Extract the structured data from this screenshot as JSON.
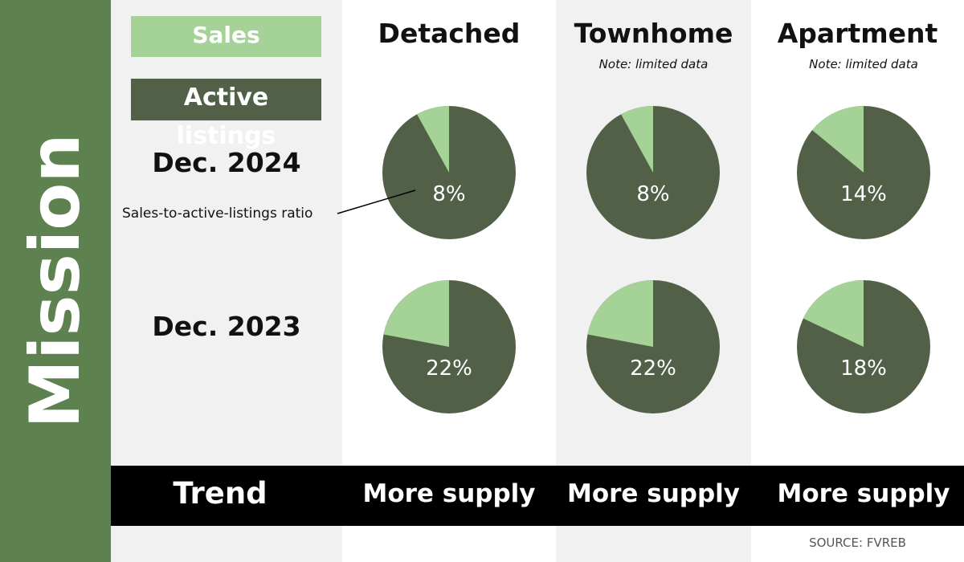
{
  "sidebar": {
    "title": "Mission"
  },
  "legend": {
    "sales_label": "Sales",
    "active_label": "Active listings"
  },
  "rows": {
    "dec2024": "Dec. 2024",
    "dec2023": "Dec. 2023"
  },
  "callout": {
    "label": "Sales-to-active-listings ratio"
  },
  "trend": {
    "label": "Trend",
    "detached": "More supply",
    "townhome": "More supply",
    "apartment": "More supply"
  },
  "source": "SOURCE: FVREB",
  "colors": {
    "sidebar": "#5e824f",
    "sales": "#a5d296",
    "active_listings": "#526048",
    "trend_bar": "#000000"
  },
  "chart_data": {
    "type": "pie",
    "title": "",
    "legend": [
      "Sales",
      "Active listings"
    ],
    "metric": "Sales-to-active-listings ratio",
    "columns": [
      {
        "name": "Detached",
        "note": ""
      },
      {
        "name": "Townhome",
        "note": "Note: limited data"
      },
      {
        "name": "Apartment",
        "note": "Note: limited data"
      }
    ],
    "rows": [
      "Dec. 2024",
      "Dec. 2023"
    ],
    "values": [
      [
        8,
        8,
        14
      ],
      [
        22,
        22,
        18
      ]
    ],
    "value_labels": [
      [
        "8%",
        "8%",
        "14%"
      ],
      [
        "22%",
        "22%",
        "18%"
      ]
    ]
  }
}
